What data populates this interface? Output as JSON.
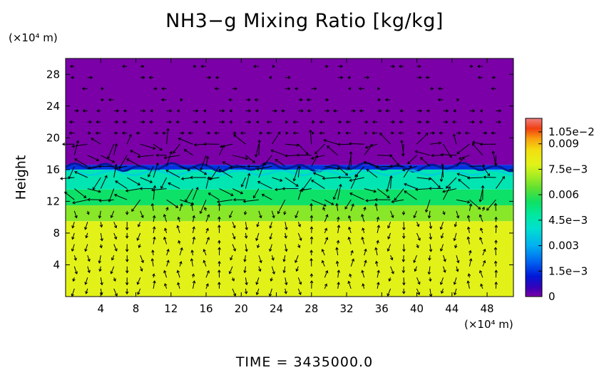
{
  "chart_data": {
    "type": "heatmap",
    "title": "NH3−g Mixing Ratio [kg/kg]",
    "ylabel": "Height",
    "y_unit": "(×10⁴ m)",
    "x_unit": "(×10⁴ m)",
    "xlim": [
      0,
      51
    ],
    "ylim": [
      0,
      30
    ],
    "x_ticks": [
      "4",
      "8",
      "12",
      "16",
      "20",
      "24",
      "28",
      "32",
      "36",
      "40",
      "44",
      "48"
    ],
    "y_ticks": [
      "4",
      "8",
      "12",
      "16",
      "20",
      "24",
      "28"
    ],
    "colorbar": {
      "min": 0,
      "max": 0.0105,
      "labels": [
        "1.05e−2",
        "0.009",
        "7.5e−3",
        "0.006",
        "4.5e−3",
        "0.003",
        "1.5e−3",
        "0"
      ]
    },
    "layers": [
      {
        "from_height": 0,
        "to_height": 9.5,
        "value": 0.0078
      },
      {
        "from_height": 9.5,
        "to_height": 11.5,
        "value": 0.0068
      },
      {
        "from_height": 11.5,
        "to_height": 13.5,
        "value": 0.0055
      },
      {
        "from_height": 13.5,
        "to_height": 16.0,
        "value": 0.0045
      },
      {
        "from_height": 16.0,
        "to_height": 16.6,
        "value": 0.0015
      },
      {
        "from_height": 16.6,
        "to_height": 30,
        "value": 0
      }
    ],
    "overlay": "wind vectors",
    "grid": false,
    "legend": "colorbar right"
  },
  "footer": {
    "time_label": "TIME",
    "time_sep": "=",
    "time_value": "3435000.0"
  }
}
